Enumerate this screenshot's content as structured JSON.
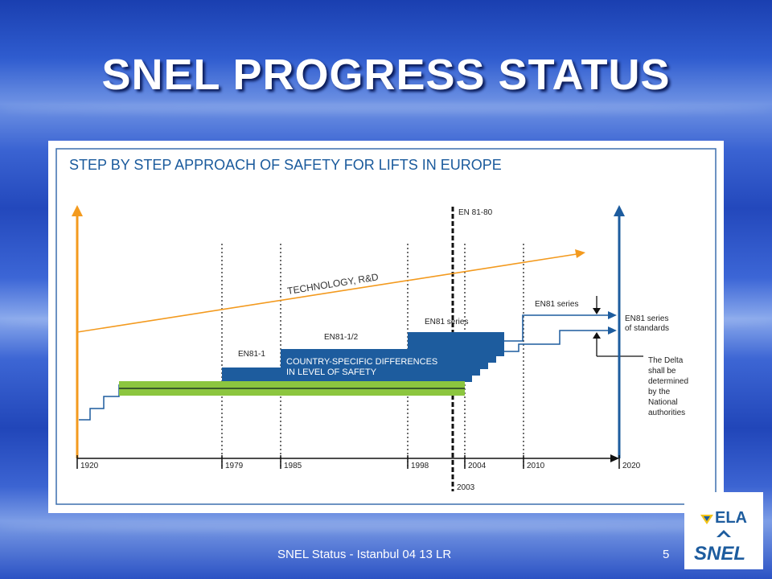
{
  "slide": {
    "title": "SNEL PROGRESS STATUS",
    "footer": "SNEL Status - Istanbul 04 13  LR",
    "page_number": "5"
  },
  "diagram": {
    "heading": "STEP BY STEP APPROACH OF SAFETY FOR LIFTS IN EUROPE",
    "technology_label": "TECHNOLOGY, R&D",
    "en81_80_label": "EN 81-80",
    "en81_1_label": "EN81-1",
    "en81_12_label": "EN81-1/2",
    "en81_series_label": "EN81 series",
    "en81_series_upper_label": "EN81 series",
    "country_diff_line1": "COUNTRY-SPECIFIC DIFFERENCES",
    "country_diff_line2": "IN LEVEL OF SAFETY",
    "standards_line1": "EN81 series",
    "standards_line2": "of standards",
    "delta_lines": [
      "The Delta",
      "shall be",
      "determined",
      "by the",
      "National",
      "authorities"
    ],
    "years": [
      "1920",
      "1979",
      "1985",
      "1998",
      "2004",
      "2010",
      "2020"
    ],
    "year_2003": "2003",
    "colors": {
      "heading": "#1a5a9c",
      "frame": "#3c6fae",
      "blue_block": "#1d5c9e",
      "green_band": "#8cc63f",
      "orange": "#f39a1e"
    }
  },
  "logos": {
    "ela": "ELA",
    "snel": "SNEL"
  }
}
